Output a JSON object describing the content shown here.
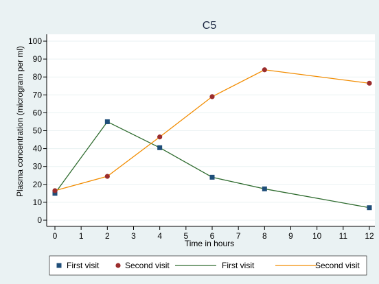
{
  "chart_data": {
    "type": "line",
    "title": "C5",
    "xlabel": "Time in hours",
    "ylabel": "Plasma concentration (microgram per ml)",
    "xlim": [
      0,
      12
    ],
    "ylim": [
      0,
      100
    ],
    "x_ticks": [
      "0",
      "1",
      "2",
      "3",
      "4",
      "5",
      "6",
      "7",
      "8",
      "9",
      "10",
      "11",
      "12"
    ],
    "y_ticks": [
      "0",
      "10",
      "20",
      "30",
      "40",
      "50",
      "60",
      "70",
      "80",
      "90",
      "100"
    ],
    "grid": "horizontal",
    "legend_position": "bottom",
    "series": [
      {
        "name": "First visit",
        "color": "#2e6b2e",
        "marker": "square",
        "marker_color": "#1f4e79",
        "x": [
          0,
          2,
          4,
          6,
          8,
          12
        ],
        "y": [
          15,
          55,
          40.5,
          24,
          17.5,
          7
        ]
      },
      {
        "name": "Second visit",
        "color": "#f28c00",
        "marker": "circle",
        "marker_color": "#9b2d2d",
        "x": [
          0,
          2,
          4,
          6,
          8,
          12
        ],
        "y": [
          16.5,
          24.5,
          46.5,
          69,
          84,
          76.5
        ]
      }
    ],
    "legend": [
      {
        "label": "First visit",
        "kind": "marker-square",
        "color": "#1f4e79"
      },
      {
        "label": "Second visit",
        "kind": "marker-circle",
        "color": "#9b2d2d"
      },
      {
        "label": "First visit",
        "kind": "line",
        "color": "#2e6b2e"
      },
      {
        "label": "Second visit",
        "kind": "line",
        "color": "#f28c00"
      }
    ]
  }
}
